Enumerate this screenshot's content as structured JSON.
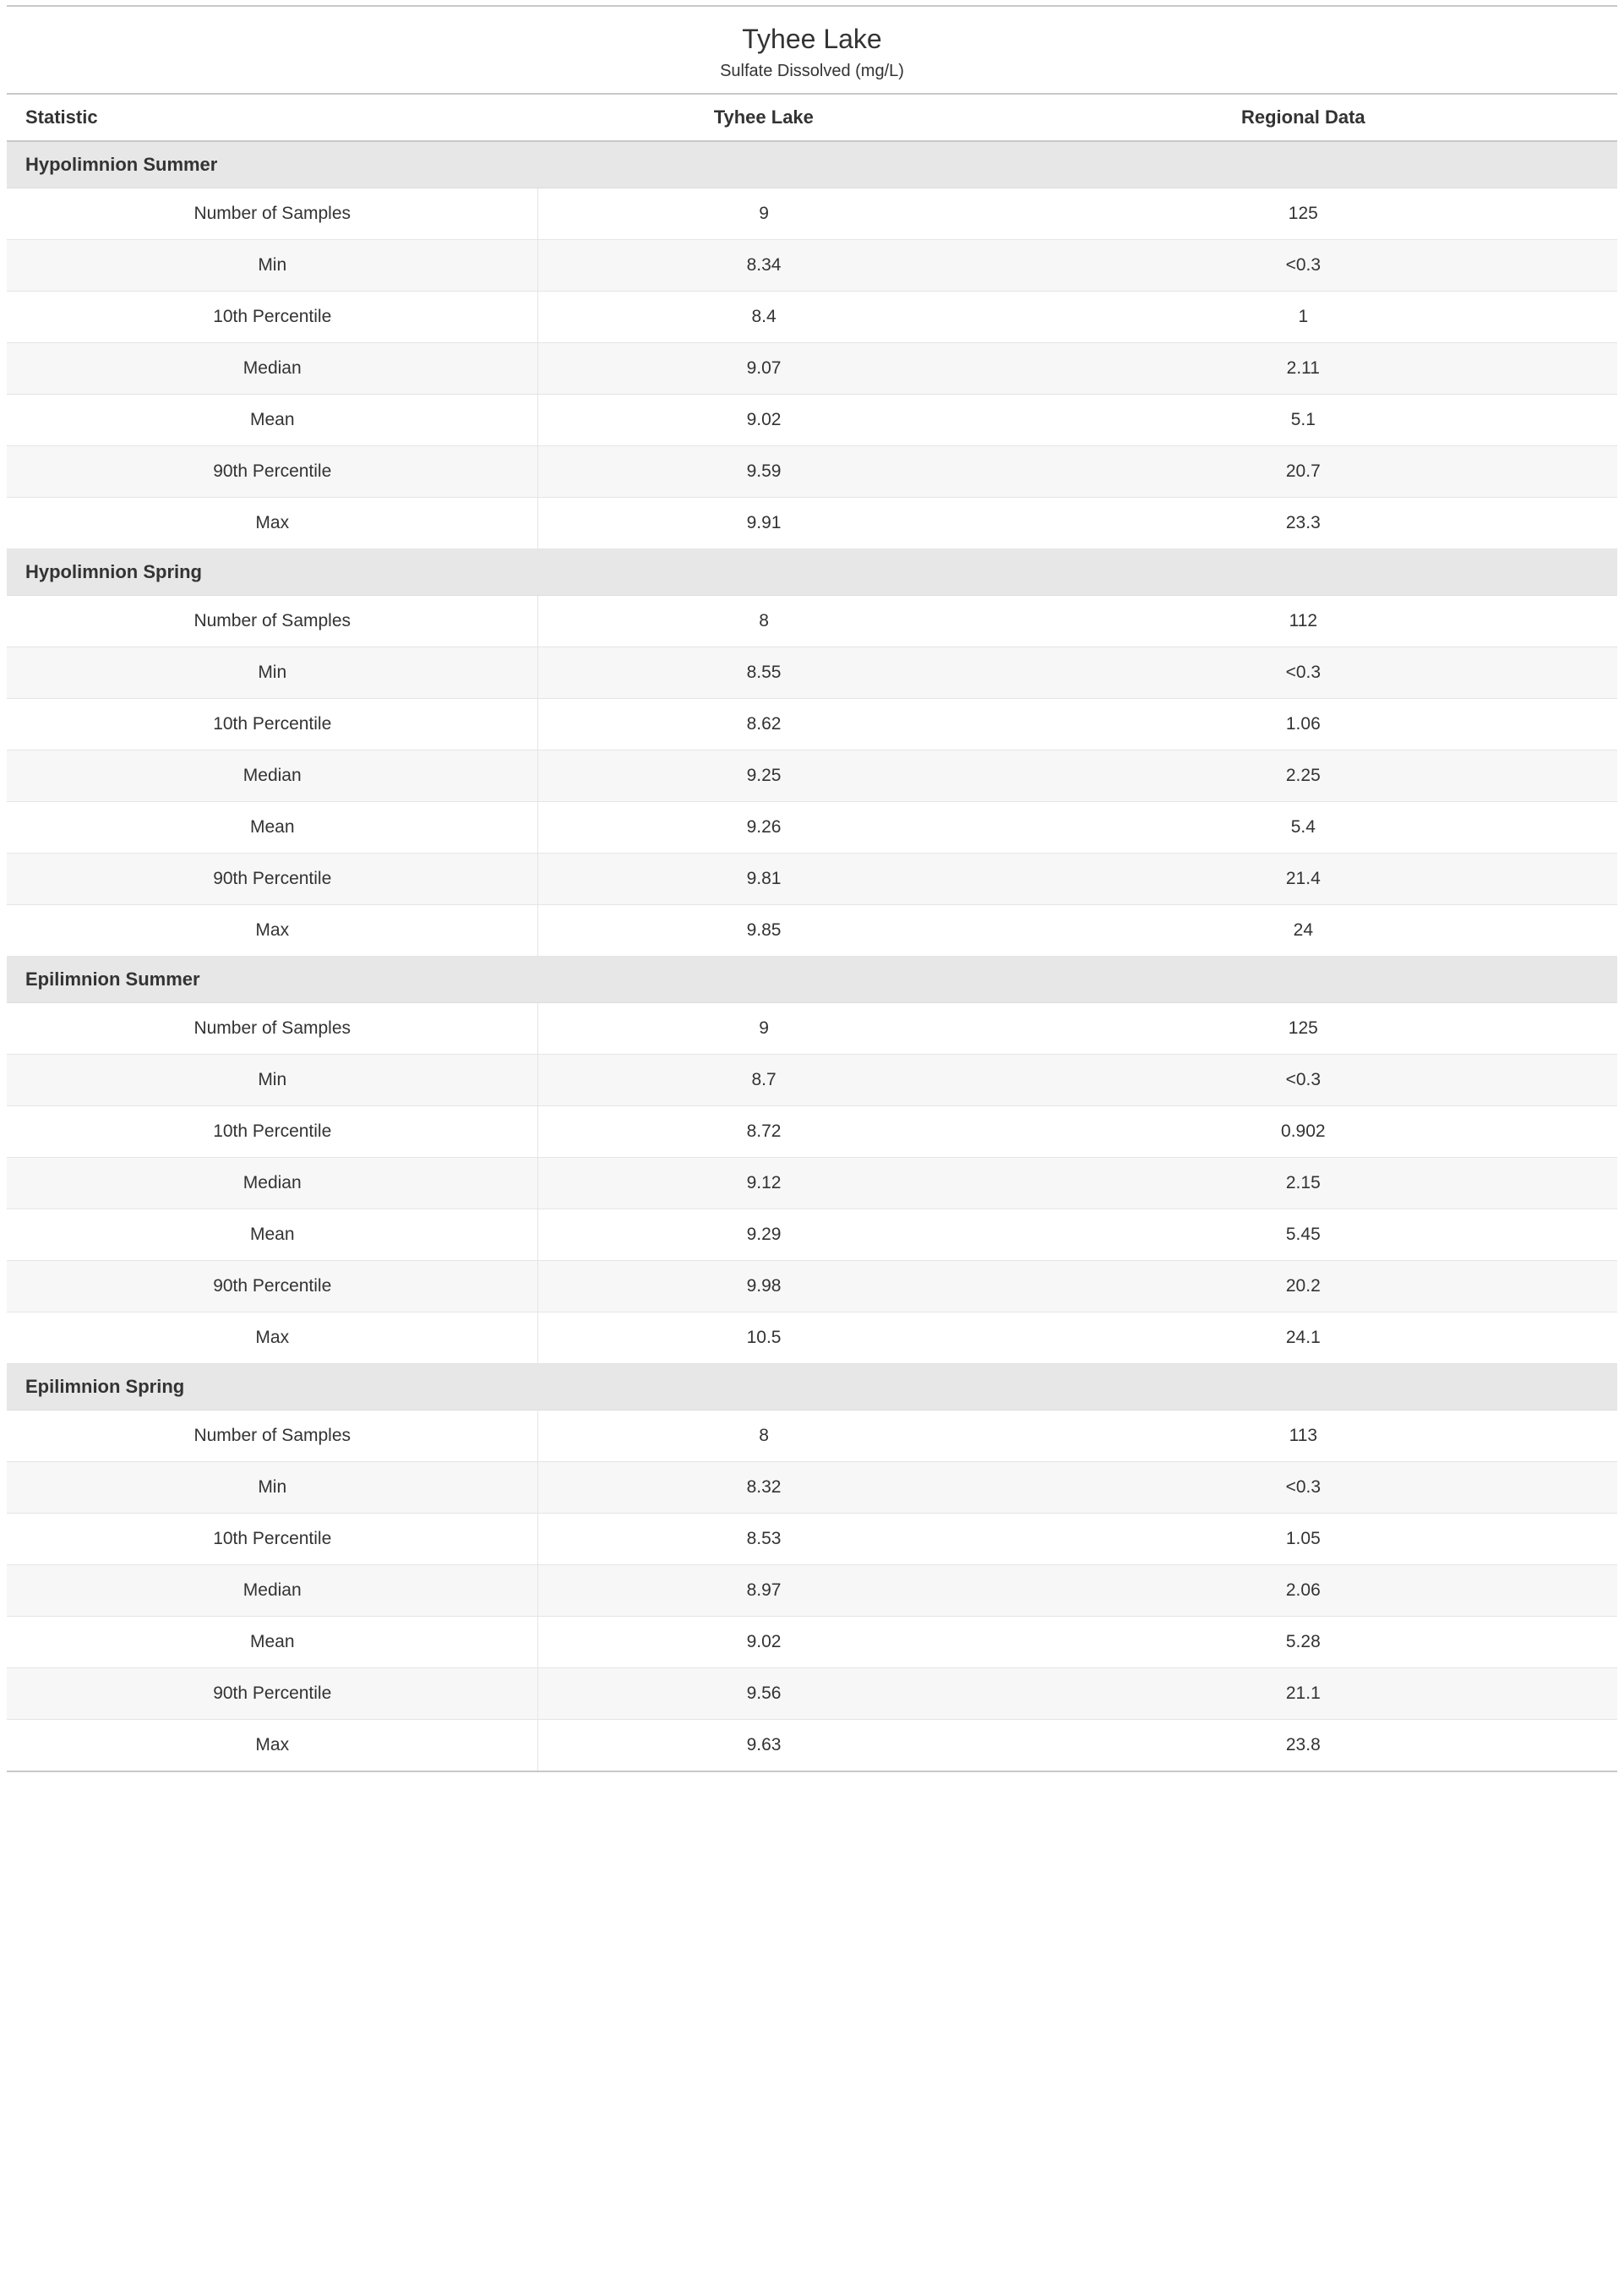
{
  "title": "Tyhee Lake",
  "subtitle": "Sulfate Dissolved (mg/L)",
  "columns": [
    "Statistic",
    "Tyhee Lake",
    "Regional Data"
  ],
  "colors": {
    "page_bg": "#ffffff",
    "text": "#333333",
    "section_bg": "#e7e7e7",
    "row_even_bg": "#ffffff",
    "row_odd_bg": "#f7f7f7",
    "border": "#e5e5e5",
    "rule": "#c8c8c8"
  },
  "typography": {
    "family": "Segoe UI",
    "title_fontsize": 32,
    "subtitle_fontsize": 20,
    "header_fontsize": 22,
    "header_weight": 700,
    "section_fontsize": 22,
    "section_weight": 700,
    "row_fontsize": 21,
    "row_weight": 400
  },
  "layout": {
    "col_widths_pct": [
      33,
      28,
      39
    ],
    "col1_align": "left-header-center-body",
    "col2_align": "center",
    "col3_align": "center"
  },
  "sections": [
    {
      "name": "Hypolimnion Summer",
      "rows": [
        [
          "Number of Samples",
          "9",
          "125"
        ],
        [
          "Min",
          "8.34",
          "<0.3"
        ],
        [
          "10th Percentile",
          "8.4",
          "1"
        ],
        [
          "Median",
          "9.07",
          "2.11"
        ],
        [
          "Mean",
          "9.02",
          "5.1"
        ],
        [
          "90th Percentile",
          "9.59",
          "20.7"
        ],
        [
          "Max",
          "9.91",
          "23.3"
        ]
      ]
    },
    {
      "name": "Hypolimnion Spring",
      "rows": [
        [
          "Number of Samples",
          "8",
          "112"
        ],
        [
          "Min",
          "8.55",
          "<0.3"
        ],
        [
          "10th Percentile",
          "8.62",
          "1.06"
        ],
        [
          "Median",
          "9.25",
          "2.25"
        ],
        [
          "Mean",
          "9.26",
          "5.4"
        ],
        [
          "90th Percentile",
          "9.81",
          "21.4"
        ],
        [
          "Max",
          "9.85",
          "24"
        ]
      ]
    },
    {
      "name": "Epilimnion Summer",
      "rows": [
        [
          "Number of Samples",
          "9",
          "125"
        ],
        [
          "Min",
          "8.7",
          "<0.3"
        ],
        [
          "10th Percentile",
          "8.72",
          "0.902"
        ],
        [
          "Median",
          "9.12",
          "2.15"
        ],
        [
          "Mean",
          "9.29",
          "5.45"
        ],
        [
          "90th Percentile",
          "9.98",
          "20.2"
        ],
        [
          "Max",
          "10.5",
          "24.1"
        ]
      ]
    },
    {
      "name": "Epilimnion Spring",
      "rows": [
        [
          "Number of Samples",
          "8",
          "113"
        ],
        [
          "Min",
          "8.32",
          "<0.3"
        ],
        [
          "10th Percentile",
          "8.53",
          "1.05"
        ],
        [
          "Median",
          "8.97",
          "2.06"
        ],
        [
          "Mean",
          "9.02",
          "5.28"
        ],
        [
          "90th Percentile",
          "9.56",
          "21.1"
        ],
        [
          "Max",
          "9.63",
          "23.8"
        ]
      ]
    }
  ]
}
